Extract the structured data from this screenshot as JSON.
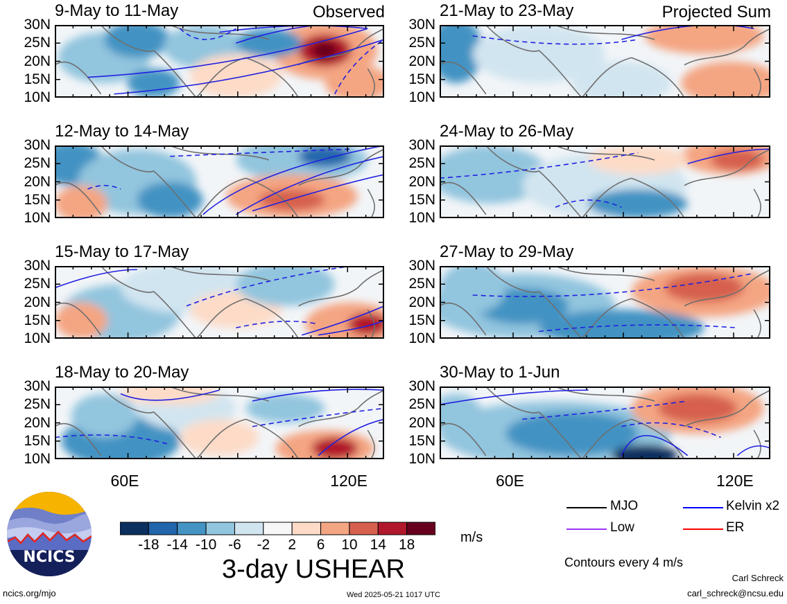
{
  "panels": [
    {
      "title": "9-May to 11-May",
      "tag": "Observed"
    },
    {
      "title": "21-May to 23-May",
      "tag": "Projected Sum"
    },
    {
      "title": "12-May to 14-May",
      "tag": ""
    },
    {
      "title": "24-May to 26-May",
      "tag": ""
    },
    {
      "title": "15-May to 17-May",
      "tag": ""
    },
    {
      "title": "27-May to 29-May",
      "tag": ""
    },
    {
      "title": "18-May to 20-May",
      "tag": ""
    },
    {
      "title": "30-May to 1-Jun",
      "tag": ""
    }
  ],
  "axes": {
    "lat_labels": [
      "30N",
      "25N",
      "20N",
      "15N",
      "10N"
    ],
    "lon_labels": [
      "60E",
      "120E"
    ],
    "lon_range": [
      40,
      130
    ],
    "lat_range": [
      10,
      30
    ]
  },
  "colorbar": {
    "colors": [
      "#0b2f5e",
      "#2166ac",
      "#4393c3",
      "#92c5de",
      "#d1e5f0",
      "#f7f7f7",
      "#fddbc7",
      "#f4a582",
      "#d6604d",
      "#b2182b",
      "#67001f"
    ],
    "labels": [
      "-18",
      "-14",
      "-10",
      "-6",
      "-2",
      "2",
      "6",
      "10",
      "14",
      "18"
    ],
    "units": "m/s"
  },
  "main_title": "3-day USHEAR",
  "legend": {
    "items": [
      {
        "label": "MJO",
        "color": "#000000"
      },
      {
        "label": "Kelvin x2",
        "color": "#0000ff"
      },
      {
        "label": "Low",
        "color": "#9933ff"
      },
      {
        "label": "ER",
        "color": "#ff0000"
      }
    ],
    "contours_note": "Contours every 4 m/s"
  },
  "footer": {
    "url": "ncics.org/mjo",
    "timestamp": "Wed 2025-05-21 1017 UTC",
    "author": "Carl Schreck",
    "email": "carl_schreck@ncsu.edu"
  },
  "logo": {
    "text": "NCICS"
  },
  "chart_data": {
    "type": "heatmap",
    "variable": "3-day USHEAR",
    "units": "m/s",
    "lon_range": [
      40,
      130
    ],
    "lat_range": [
      10,
      30
    ],
    "contour_interval": 4,
    "panels": [
      "9-May to 11-May",
      "21-May to 23-May",
      "12-May to 14-May",
      "24-May to 26-May",
      "15-May to 17-May",
      "27-May to 29-May",
      "18-May to 20-May",
      "30-May to 1-Jun"
    ],
    "colorbar_levels": [
      -18,
      -14,
      -10,
      -6,
      -2,
      2,
      6,
      10,
      14,
      18
    ],
    "legend": [
      "MJO",
      "Kelvin x2",
      "Low",
      "ER"
    ]
  }
}
